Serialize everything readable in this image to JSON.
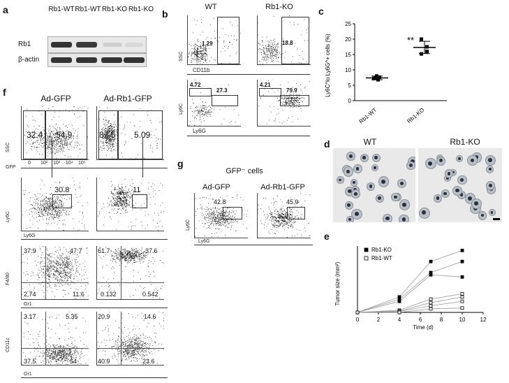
{
  "panel_letters": {
    "a": "a",
    "b": "b",
    "c": "c",
    "d": "d",
    "e": "e",
    "f": "f",
    "g": "g"
  },
  "panel_a": {
    "lanes": [
      "Rb1-WT",
      "Rb1-WT",
      "Rb1-KO",
      "Rb1-KO"
    ],
    "rows": [
      "Rb1",
      "β-actin"
    ]
  },
  "panel_b": {
    "columns": [
      "WT",
      "Rb1-KO"
    ],
    "top_y_label": "SSC",
    "top_x_label": "CD11b",
    "top_values": [
      "1.29",
      "18.8"
    ],
    "bottom_y_label": "Ly6C",
    "bottom_x_label": "Ly6G",
    "bottom_values": [
      [
        "4.72",
        "27.3"
      ],
      [
        "4.21",
        "79.9"
      ]
    ]
  },
  "panel_c": {
    "chart_data": {
      "type": "scatter",
      "categories": [
        "Rb1-WT",
        "Rb1-KO"
      ],
      "ylabel": "Ly6C^lo Ly6G^+ cells (%)",
      "ylim": [
        0,
        25
      ],
      "yticks": [
        "0",
        "5",
        "10",
        "15",
        "20",
        "25"
      ],
      "series": [
        {
          "values_wt": [
            7.2,
            7.5,
            8.0,
            6.8,
            7.6
          ],
          "values_ko": [
            20.0,
            17.5,
            15.2,
            16.0
          ]
        }
      ],
      "means": [
        7.4,
        17.3
      ],
      "significance": "**"
    }
  },
  "panel_d": {
    "columns": [
      "WT",
      "Rb1-KO"
    ]
  },
  "panel_e": {
    "chart_data": {
      "type": "line",
      "xlabel": "Time (d)",
      "ylabel": "Tumor size (mm²)",
      "xlim": [
        0,
        12
      ],
      "ylim": [
        0,
        150
      ],
      "xticks": [
        "0",
        "2",
        "4",
        "6",
        "8",
        "10",
        "12"
      ],
      "legend": [
        "Rb1-KO",
        "Rb1-WT"
      ],
      "x": [
        0,
        4,
        7,
        10
      ],
      "series": [
        {
          "name": "Rb1-KO",
          "values": [
            [
              0,
              35,
              115,
              140
            ],
            [
              0,
              30,
              90,
              115
            ],
            [
              0,
              25,
              85,
              80
            ]
          ]
        },
        {
          "name": "Rb1-WT",
          "values": [
            [
              0,
              5,
              30,
              42
            ],
            [
              0,
              3,
              22,
              35
            ],
            [
              0,
              2,
              15,
              25
            ],
            [
              0,
              0,
              8,
              10
            ]
          ]
        }
      ]
    }
  },
  "panel_f": {
    "columns": [
      "Ad-GFP",
      "Ad-Rb1-GFP"
    ],
    "row1": {
      "y": "SSC",
      "x": "GFP",
      "values": [
        [
          "32.4",
          "54.9"
        ],
        [
          "87.5",
          "5.09"
        ]
      ]
    },
    "row2": {
      "y": "Ly6C",
      "x": "Ly6G",
      "values": [
        "30.8",
        "11"
      ]
    },
    "row3": {
      "y": "F4/80",
      "x": "Gr1",
      "values": [
        [
          "37.9",
          "47.7",
          "2.74",
          "11.6"
        ],
        [
          "61.7",
          "37.6",
          "0.132",
          "0.542"
        ]
      ]
    },
    "row4": {
      "y": "CD11c",
      "x": "Gr1",
      "values": [
        [
          "3.17",
          "5.35",
          "37.5",
          "54"
        ],
        [
          "20.9",
          "14.6",
          "40.9",
          "23.6"
        ]
      ]
    },
    "axis_ticks": [
      "0",
      "10²",
      "10³",
      "10⁴",
      "10⁵"
    ]
  },
  "panel_g": {
    "title": "GFP⁻ cells",
    "columns": [
      "Ad-GFP",
      "Ad-Rb1-GFP"
    ],
    "y": "Ly6C",
    "x": "Ly6G",
    "values": [
      "42.8",
      "45.9"
    ]
  }
}
